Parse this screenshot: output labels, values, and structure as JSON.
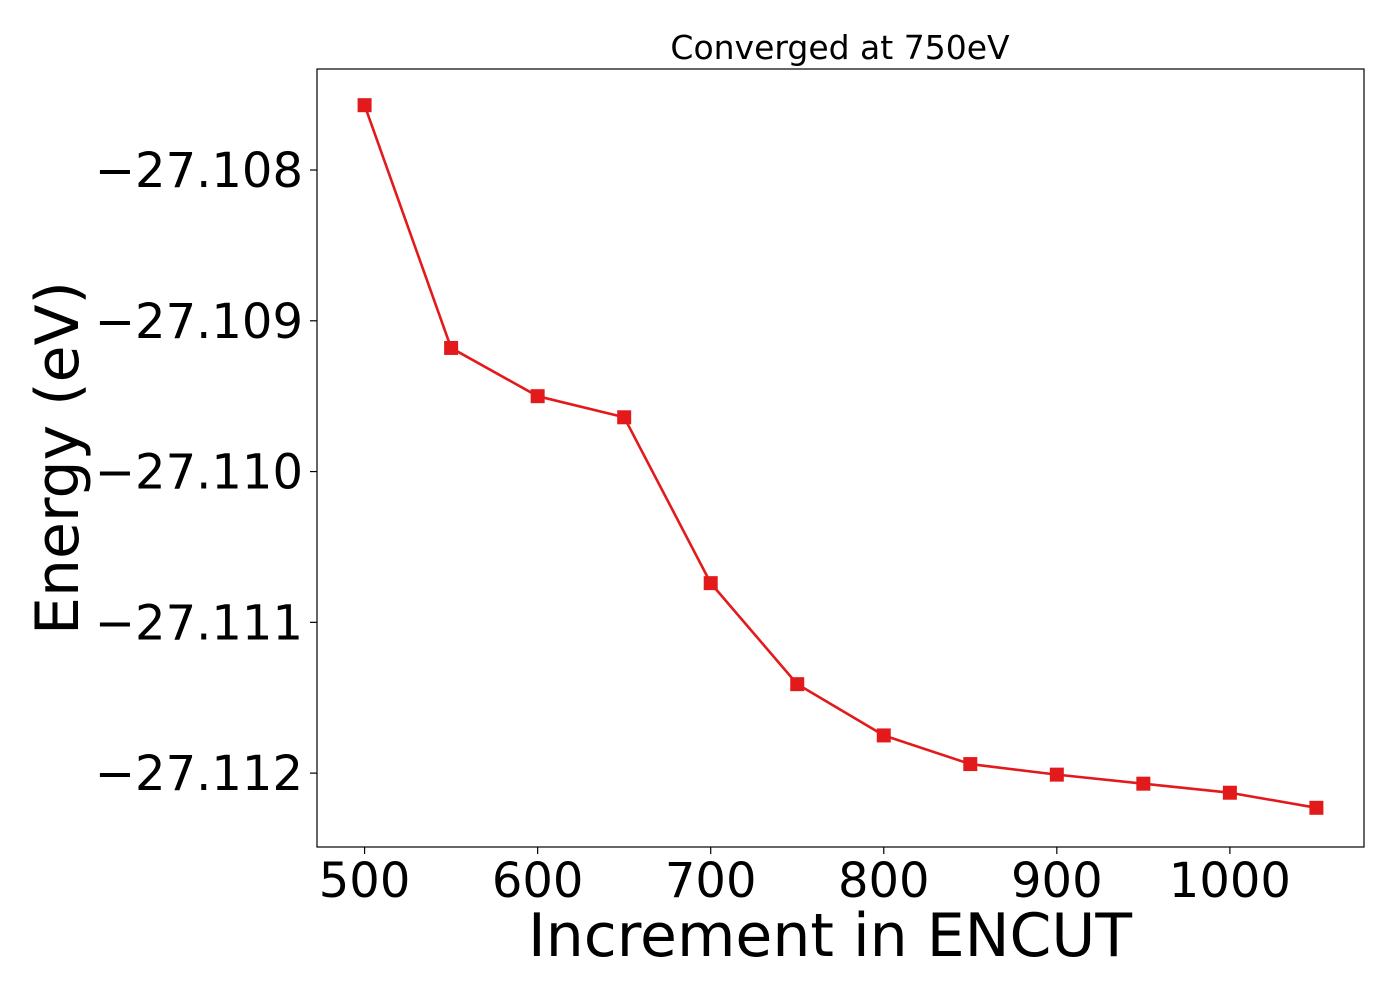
{
  "chart_data": {
    "type": "line",
    "title": "Converged at 750eV",
    "xlabel": "Increment in ENCUT",
    "ylabel": "Energy (eV)",
    "xlim": [
      472.5,
      1077.5
    ],
    "ylim": [
      -27.11249,
      -27.10733
    ],
    "xticks": [
      500,
      600,
      700,
      800,
      900,
      1000
    ],
    "xtick_labels": [
      "500",
      "600",
      "700",
      "800",
      "900",
      "1000"
    ],
    "yticks": [
      -27.108,
      -27.109,
      -27.11,
      -27.111,
      -27.112
    ],
    "ytick_labels": [
      "−27.108",
      "−27.109",
      "−27.110",
      "−27.111",
      "−27.112"
    ],
    "grid": false,
    "series": [
      {
        "name": "Energy",
        "color": "#e31a1c",
        "marker": "square",
        "x": [
          500,
          550,
          600,
          650,
          700,
          750,
          800,
          850,
          900,
          950,
          1000,
          1050
        ],
        "values": [
          -27.10757,
          -27.10918,
          -27.1095,
          -27.10964,
          -27.11074,
          -27.11141,
          -27.11175,
          -27.11194,
          -27.11201,
          -27.11207,
          -27.11213,
          -27.11223
        ]
      }
    ]
  }
}
